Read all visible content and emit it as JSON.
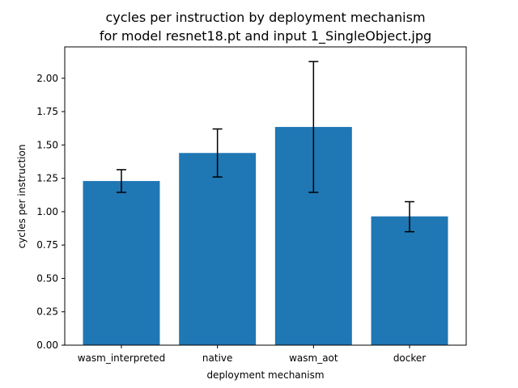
{
  "chart_data": {
    "type": "bar",
    "title": "cycles per instruction by deployment mechanism",
    "subtitle": "for model resnet18.pt and input 1_SingleObject.jpg",
    "xlabel": "deployment mechanism",
    "ylabel": "cycles per instruction",
    "categories": [
      "wasm_interpreted",
      "native",
      "wasm_aot",
      "docker"
    ],
    "values": [
      1.23,
      1.44,
      1.635,
      0.965
    ],
    "error_low": [
      1.145,
      1.26,
      1.145,
      0.85
    ],
    "error_high": [
      1.315,
      1.62,
      2.125,
      1.075
    ],
    "ylim": [
      0,
      2.235
    ],
    "yticks": [
      "0.00",
      "0.25",
      "0.50",
      "0.75",
      "1.00",
      "1.25",
      "1.50",
      "1.75",
      "2.00"
    ],
    "bar_color": "#1f77b4",
    "error_color": "#000000",
    "grid": false
  }
}
